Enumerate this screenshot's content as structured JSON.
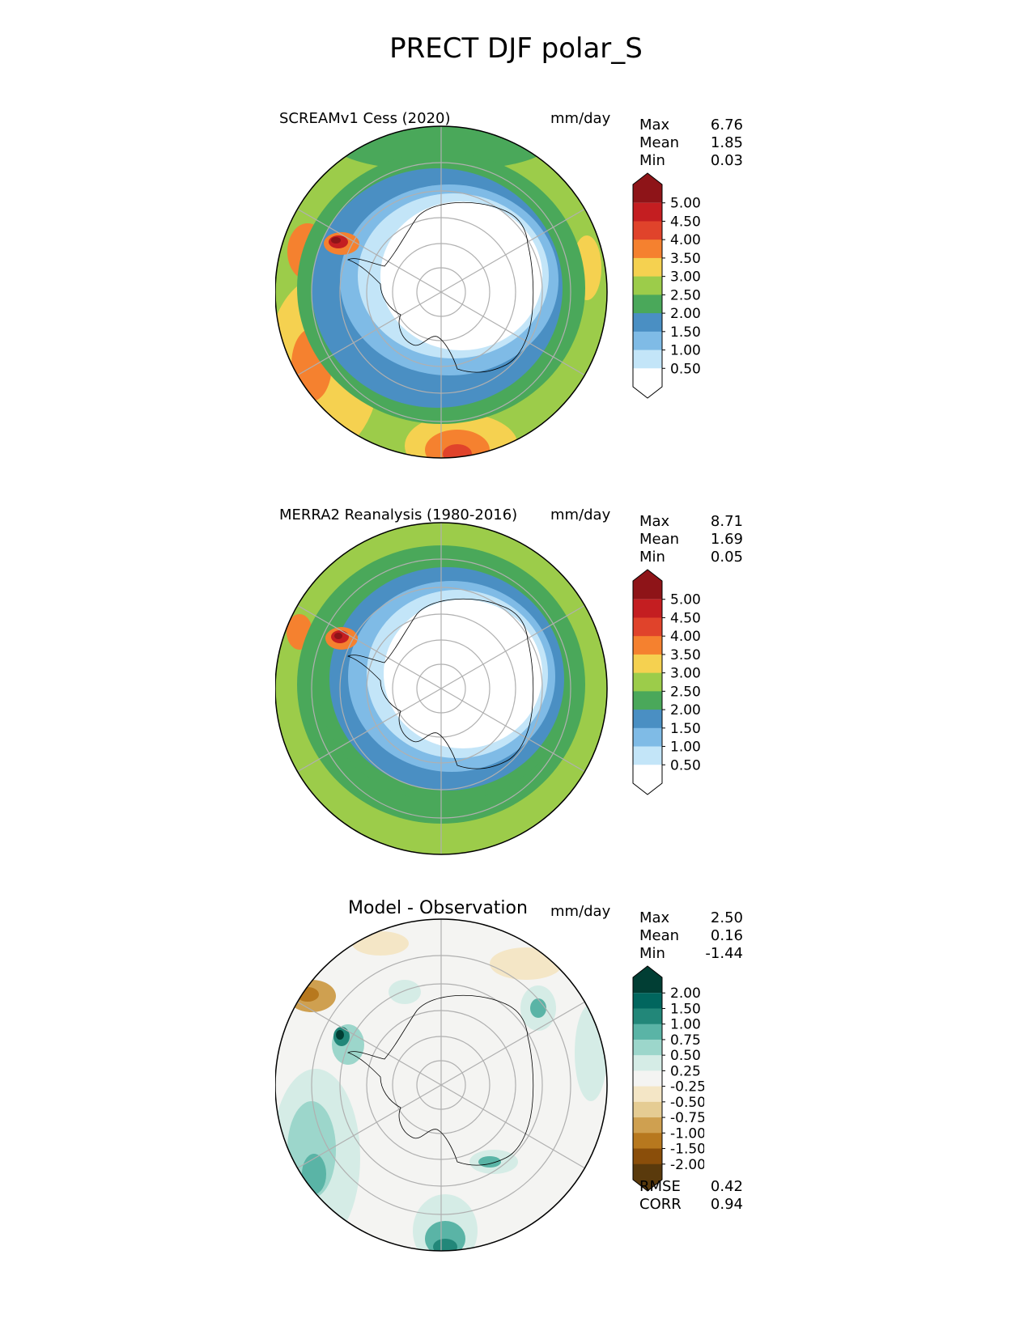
{
  "title": "PRECT DJF polar_S",
  "abs_colors": [
    "#ffffff",
    "#c3e5f8",
    "#7fbbe6",
    "#4a8fc3",
    "#4aa85a",
    "#9ccc4a",
    "#f5d150",
    "#f5812f",
    "#e0432b",
    "#c41e21",
    "#8e1418"
  ],
  "diff_colors": [
    "#5a3a0c",
    "#8a4e0a",
    "#b7781e",
    "#cfa050",
    "#e5cc93",
    "#f4e6c6",
    "#f4f4f2",
    "#d5ece6",
    "#9cd6cb",
    "#5ab4a6",
    "#228779",
    "#01665e",
    "#013e34"
  ],
  "panels": [
    {
      "title": "SCREAMv1 Cess (2020)",
      "units": "mm/day",
      "stats": [
        {
          "label": "Max",
          "value": "6.76"
        },
        {
          "label": "Mean",
          "value": "1.85"
        },
        {
          "label": "Min",
          "value": "0.03"
        }
      ],
      "colorbar_ticks": [
        "5.00",
        "4.50",
        "4.00",
        "3.50",
        "3.00",
        "2.50",
        "2.00",
        "1.50",
        "1.00",
        "0.50"
      ],
      "colorbar": "abs"
    },
    {
      "title": "MERRA2 Reanalysis (1980-2016)",
      "units": "mm/day",
      "stats": [
        {
          "label": "Max",
          "value": "8.71"
        },
        {
          "label": "Mean",
          "value": "1.69"
        },
        {
          "label": "Min",
          "value": "0.05"
        }
      ],
      "colorbar_ticks": [
        "5.00",
        "4.50",
        "4.00",
        "3.50",
        "3.00",
        "2.50",
        "2.00",
        "1.50",
        "1.00",
        "0.50"
      ],
      "colorbar": "abs"
    },
    {
      "title": "Model - Observation",
      "units": "mm/day",
      "stats": [
        {
          "label": "Max",
          "value": "2.50"
        },
        {
          "label": "Mean",
          "value": "0.16"
        },
        {
          "label": "Min",
          "value": "-1.44"
        }
      ],
      "colorbar_ticks": [
        "2.00",
        "1.50",
        "1.00",
        "0.75",
        "0.50",
        "0.25",
        "-0.25",
        "-0.50",
        "-0.75",
        "-1.00",
        "-1.50",
        "-2.00"
      ],
      "colorbar": "diff",
      "extra_stats": [
        {
          "label": "RMSE",
          "value": "0.42"
        },
        {
          "label": "CORR",
          "value": "0.94"
        }
      ]
    }
  ]
}
